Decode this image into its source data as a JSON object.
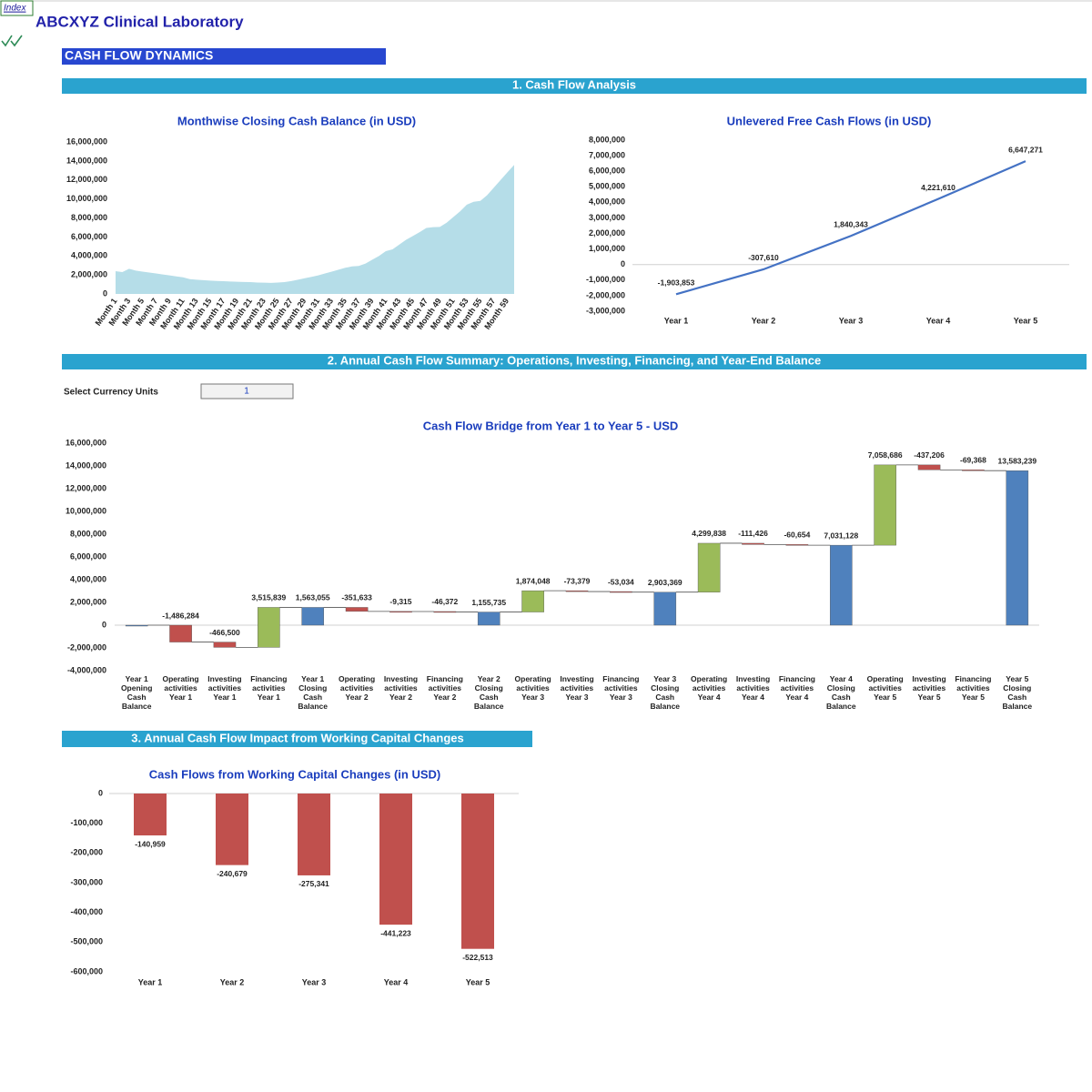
{
  "index_link": "Index",
  "company": "ABCXYZ Clinical Laboratory",
  "page_title": "CASH FLOW DYNAMICS",
  "sections": [
    "1. Cash Flow Analysis",
    "2. Annual Cash Flow Summary: Operations, Investing, Financing, and Year-End Balance",
    "3. Annual Cash Flow Impact from Working Capital Changes"
  ],
  "currency_units": {
    "label": "Select Currency Units",
    "value": 1
  },
  "chart_data": [
    {
      "type": "area",
      "title": "Monthwise Closing Cash Balance (in USD)",
      "color": "#b5dde8",
      "categories": [
        "Month 1",
        null,
        "Month 3",
        null,
        "Month 5",
        null,
        "Month 7",
        null,
        "Month 9",
        null,
        "Month 11",
        null,
        "Month 13",
        null,
        "Month 15",
        null,
        "Month 17",
        null,
        "Month 19",
        null,
        "Month 21",
        null,
        "Month 23",
        null,
        "Month 25",
        null,
        "Month 27",
        null,
        "Month 29",
        null,
        "Month 31",
        null,
        "Month 33",
        null,
        "Month 35",
        null,
        "Month 37",
        null,
        "Month 39",
        null,
        "Month 41",
        null,
        "Month 43",
        null,
        "Month 45",
        null,
        "Month 47",
        null,
        "Month 49",
        null,
        "Month 51",
        null,
        "Month 53",
        null,
        "Month 55",
        null,
        "Month 57",
        null,
        "Month 59",
        null
      ],
      "values": [
        2400000,
        2300000,
        2650000,
        2450000,
        2350000,
        2250000,
        2150000,
        2050000,
        1950000,
        1850000,
        1750000,
        1560000,
        1500000,
        1450000,
        1400000,
        1370000,
        1340000,
        1310000,
        1280000,
        1260000,
        1240000,
        1200000,
        1180000,
        1160000,
        1200000,
        1250000,
        1350000,
        1500000,
        1650000,
        1800000,
        1950000,
        2150000,
        2350000,
        2550000,
        2750000,
        2900000,
        2950000,
        3200000,
        3600000,
        4000000,
        4500000,
        4700000,
        5200000,
        5700000,
        6100000,
        6500000,
        6950000,
        7030000,
        7050000,
        7500000,
        8100000,
        8700000,
        9400000,
        9700000,
        9800000,
        10400000,
        11200000,
        12000000,
        12800000,
        13580000
      ],
      "ylim": [
        0,
        16000000
      ],
      "yticks": [
        0,
        {
          "value": 2000000,
          "label": "2,000,000"
        },
        {
          "value": 4000000,
          "label": "4,000,000"
        },
        {
          "value": 6000000,
          "label": "6,000,000"
        },
        {
          "value": 8000000,
          "label": "8,000,000"
        },
        {
          "value": 10000000,
          "label": "10,000,000"
        },
        {
          "value": 12000000,
          "label": "12,000,000"
        },
        {
          "value": 14000000,
          "label": "14,000,000"
        },
        {
          "value": 16000000,
          "label": "16,000,000"
        }
      ]
    },
    {
      "type": "line",
      "title": "Unlevered Free Cash Flows (in USD)",
      "color": "#4472c4",
      "categories": [
        "Year 1",
        "Year 2",
        "Year 3",
        "Year 4",
        "Year 5"
      ],
      "values": [
        -1903853,
        -307610,
        1840343,
        4221610,
        6647271
      ],
      "value_labels": [
        "-1,903,853",
        "-307,610",
        "1,840,343",
        "4,221,610",
        "6,647,271"
      ],
      "ylim": [
        -3000000,
        8000000
      ],
      "yticks": [
        {
          "value": -3000000,
          "label": "-3,000,000"
        },
        {
          "value": -2000000,
          "label": "-2,000,000"
        },
        {
          "value": -1000000,
          "label": "-1,000,000"
        },
        0,
        {
          "value": 1000000,
          "label": "1,000,000"
        },
        {
          "value": 2000000,
          "label": "2,000,000"
        },
        {
          "value": 3000000,
          "label": "3,000,000"
        },
        {
          "value": 4000000,
          "label": "4,000,000"
        },
        {
          "value": 5000000,
          "label": "5,000,000"
        },
        {
          "value": 6000000,
          "label": "6,000,000"
        },
        {
          "value": 7000000,
          "label": "7,000,000"
        },
        {
          "value": 8000000,
          "label": "8,000,000"
        }
      ]
    },
    {
      "type": "waterfall",
      "title": "Cash Flow Bridge from Year 1 to Year 5 - USD",
      "colors": {
        "increase": "#9bbb59",
        "decrease": "#c0504d",
        "total": "#4f81bd"
      },
      "categories": [
        "Year 1 Opening Cash Balance",
        "Operating activities Year 1",
        "Investing activities Year 1",
        "Financing activities Year 1",
        "Year 1 Closing Cash Balance",
        "Operating activities Year 2",
        "Investing activities Year 2",
        "Financing activities Year 2",
        "Year 2 Closing Cash Balance",
        "Operating activities Year 3",
        "Investing activities Year 3",
        "Financing activities Year 3",
        "Year 3 Closing Cash Balance",
        "Operating activities Year 4",
        "Investing activities Year 4",
        "Financing activities Year 4",
        "Year 4 Closing Cash Balance",
        "Operating activities Year 5",
        "Investing activities Year 5",
        "Financing activities Year 5",
        "Year 5 Closing Cash Balance"
      ],
      "values": [
        0,
        -1486284,
        -466500,
        3515839,
        1563055,
        -351633,
        -9315,
        -46372,
        1155735,
        1874048,
        -73379,
        -53034,
        2903369,
        4299838,
        -111426,
        -60654,
        7031128,
        7058686,
        -437206,
        -69368,
        13583239
      ],
      "value_labels": [
        null,
        "-1,486,284",
        "-466,500",
        "3,515,839",
        "1,563,055",
        "-351,633",
        "-9,315",
        "-46,372",
        "1,155,735",
        "1,874,048",
        "-73,379",
        "-53,034",
        "2,903,369",
        "4,299,838",
        "-111,426",
        "-60,654",
        "7,031,128",
        "7,058,686",
        "-437,206",
        "-69,368",
        "13,583,239"
      ],
      "ylim": [
        -4000000,
        16000000
      ],
      "yticks": [
        {
          "value": -4000000,
          "label": "-4,000,000"
        },
        {
          "value": -2000000,
          "label": "-2,000,000"
        },
        0,
        {
          "value": 2000000,
          "label": "2,000,000"
        },
        {
          "value": 4000000,
          "label": "4,000,000"
        },
        {
          "value": 6000000,
          "label": "6,000,000"
        },
        {
          "value": 8000000,
          "label": "8,000,000"
        },
        {
          "value": 10000000,
          "label": "10,000,000"
        },
        {
          "value": 12000000,
          "label": "12,000,000"
        },
        {
          "value": 14000000,
          "label": "14,000,000"
        },
        {
          "value": 16000000,
          "label": "16,000,000"
        }
      ]
    },
    {
      "type": "bar",
      "title": "Cash Flows from Working Capital Changes (in USD)",
      "color": "#c0504d",
      "categories": [
        "Year 1",
        "Year 2",
        "Year 3",
        "Year 4",
        "Year 5"
      ],
      "values": [
        -140959,
        -240679,
        -275341,
        -441223,
        -522513
      ],
      "value_labels": [
        "-140,959",
        "-240,679",
        "-275,341",
        "-441,223",
        "-522,513"
      ],
      "ylim": [
        -600000,
        0
      ],
      "yticks": [
        0,
        {
          "value": -100000,
          "label": "-100,000"
        },
        {
          "value": -200000,
          "label": "-200,000"
        },
        {
          "value": -300000,
          "label": "-300,000"
        },
        {
          "value": -400000,
          "label": "-400,000"
        },
        {
          "value": -500000,
          "label": "-500,000"
        },
        {
          "value": -600000,
          "label": "-600,000"
        }
      ]
    }
  ]
}
